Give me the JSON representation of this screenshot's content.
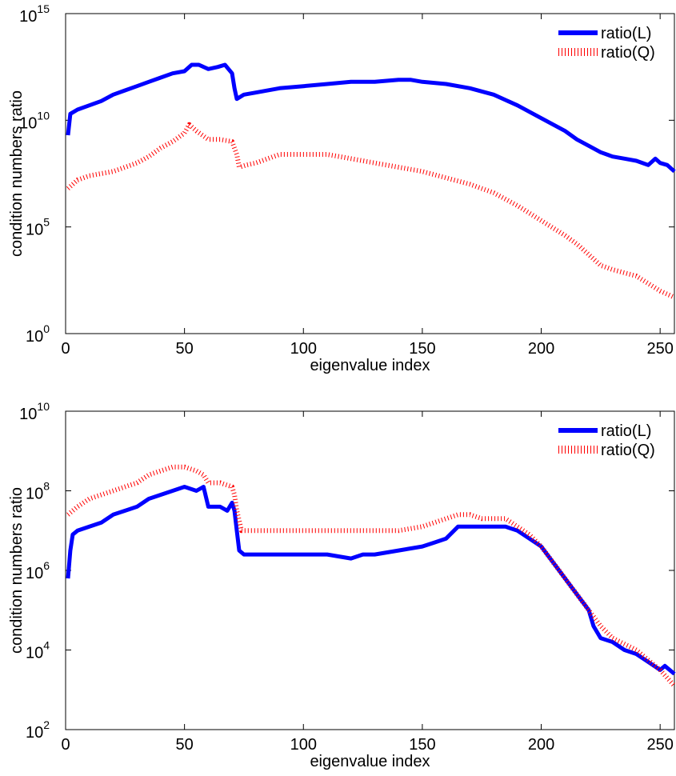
{
  "chart_data": [
    {
      "type": "line",
      "xlabel": "eigenvalue index",
      "ylabel": "condition numbers ratio",
      "xlim": [
        0,
        256
      ],
      "ylim_exp": [
        0,
        15
      ],
      "yscale": "log",
      "xticks": [
        "0",
        "50",
        "100",
        "150",
        "200",
        "250"
      ],
      "yticks": [
        {
          "base": "10",
          "exp": "0"
        },
        {
          "base": "10",
          "exp": "5"
        },
        {
          "base": "10",
          "exp": "10"
        },
        {
          "base": "10",
          "exp": "15"
        }
      ],
      "legend_position": "top-right",
      "series": [
        {
          "name": "ratio(L)",
          "color": "#0000ff",
          "style": "solid",
          "x": [
            1,
            2,
            5,
            10,
            15,
            20,
            25,
            30,
            35,
            40,
            45,
            50,
            53,
            56,
            60,
            64,
            67,
            70,
            71,
            72,
            75,
            80,
            90,
            100,
            110,
            120,
            130,
            140,
            145,
            150,
            160,
            170,
            180,
            190,
            200,
            210,
            215,
            220,
            225,
            230,
            235,
            240,
            245,
            248,
            250,
            253,
            256
          ],
          "log10_y": [
            9.3,
            10.3,
            10.5,
            10.7,
            10.9,
            11.2,
            11.4,
            11.6,
            11.8,
            12.0,
            12.2,
            12.3,
            12.6,
            12.6,
            12.4,
            12.5,
            12.6,
            12.2,
            11.5,
            11.0,
            11.2,
            11.3,
            11.5,
            11.6,
            11.7,
            11.8,
            11.8,
            11.9,
            11.9,
            11.8,
            11.7,
            11.5,
            11.2,
            10.7,
            10.1,
            9.5,
            9.1,
            8.8,
            8.5,
            8.3,
            8.2,
            8.1,
            7.9,
            8.2,
            8.0,
            7.9,
            7.6
          ]
        },
        {
          "name": "ratio(Q)",
          "color": "#ff0000",
          "style": "dotted",
          "x": [
            1,
            5,
            10,
            15,
            20,
            25,
            30,
            35,
            40,
            45,
            50,
            52,
            55,
            60,
            65,
            70,
            72,
            73,
            76,
            80,
            90,
            100,
            110,
            120,
            130,
            140,
            150,
            160,
            170,
            180,
            185,
            190,
            200,
            210,
            215,
            220,
            225,
            230,
            240,
            250,
            256
          ],
          "log10_y": [
            6.8,
            7.2,
            7.4,
            7.5,
            7.6,
            7.8,
            8.0,
            8.3,
            8.7,
            9.0,
            9.4,
            9.8,
            9.5,
            9.1,
            9.1,
            9.0,
            8.4,
            7.8,
            7.9,
            8.0,
            8.4,
            8.4,
            8.4,
            8.2,
            8.0,
            7.8,
            7.6,
            7.3,
            7.0,
            6.6,
            6.3,
            6.0,
            5.3,
            4.6,
            4.2,
            3.7,
            3.2,
            3.0,
            2.7,
            2.0,
            1.7
          ]
        }
      ]
    },
    {
      "type": "line",
      "xlabel": "eigenvalue index",
      "ylabel": "condition numbers ratio",
      "xlim": [
        0,
        256
      ],
      "ylim_exp": [
        2,
        10
      ],
      "yscale": "log",
      "xticks": [
        "0",
        "50",
        "100",
        "150",
        "200",
        "250"
      ],
      "yticks": [
        {
          "base": "10",
          "exp": "2"
        },
        {
          "base": "10",
          "exp": "4"
        },
        {
          "base": "10",
          "exp": "6"
        },
        {
          "base": "10",
          "exp": "8"
        },
        {
          "base": "10",
          "exp": "10"
        }
      ],
      "legend_position": "top-right",
      "series": [
        {
          "name": "ratio(L)",
          "color": "#0000ff",
          "style": "solid",
          "x": [
            1,
            2,
            3,
            5,
            10,
            15,
            20,
            25,
            30,
            35,
            40,
            45,
            50,
            55,
            58,
            60,
            65,
            68,
            70,
            71,
            72,
            73,
            75,
            80,
            90,
            100,
            110,
            120,
            125,
            130,
            140,
            150,
            155,
            160,
            165,
            170,
            175,
            180,
            185,
            190,
            195,
            200,
            205,
            210,
            215,
            220,
            222,
            225,
            230,
            235,
            240,
            245,
            250,
            252,
            254,
            256
          ],
          "log10_y": [
            5.8,
            6.5,
            6.9,
            7.0,
            7.1,
            7.2,
            7.4,
            7.5,
            7.6,
            7.8,
            7.9,
            8.0,
            8.1,
            8.0,
            8.1,
            7.6,
            7.6,
            7.5,
            7.7,
            7.5,
            7.0,
            6.5,
            6.4,
            6.4,
            6.4,
            6.4,
            6.4,
            6.3,
            6.4,
            6.4,
            6.5,
            6.6,
            6.7,
            6.8,
            7.1,
            7.1,
            7.1,
            7.1,
            7.1,
            7.0,
            6.8,
            6.6,
            6.2,
            5.8,
            5.4,
            5.0,
            4.6,
            4.3,
            4.2,
            4.0,
            3.9,
            3.7,
            3.5,
            3.6,
            3.5,
            3.4
          ]
        },
        {
          "name": "ratio(Q)",
          "color": "#ff0000",
          "style": "dotted",
          "x": [
            1,
            3,
            5,
            10,
            15,
            20,
            25,
            30,
            35,
            40,
            45,
            50,
            55,
            58,
            60,
            65,
            70,
            71,
            72,
            74,
            80,
            90,
            100,
            110,
            120,
            130,
            140,
            150,
            160,
            165,
            170,
            175,
            180,
            185,
            190,
            195,
            200,
            205,
            210,
            215,
            220,
            225,
            230,
            240,
            250,
            256
          ],
          "log10_y": [
            7.4,
            7.5,
            7.6,
            7.8,
            7.9,
            8.0,
            8.1,
            8.2,
            8.4,
            8.5,
            8.6,
            8.6,
            8.5,
            8.4,
            8.2,
            8.2,
            8.1,
            7.9,
            7.5,
            7.0,
            7.0,
            7.0,
            7.0,
            7.0,
            7.0,
            7.0,
            7.0,
            7.1,
            7.3,
            7.4,
            7.4,
            7.3,
            7.3,
            7.3,
            7.1,
            6.9,
            6.6,
            6.2,
            5.8,
            5.4,
            5.0,
            4.6,
            4.3,
            4.0,
            3.5,
            3.1
          ]
        }
      ]
    }
  ]
}
